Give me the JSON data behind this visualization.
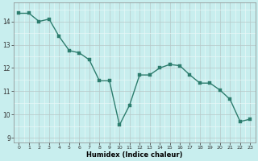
{
  "x": [
    0,
    1,
    2,
    3,
    4,
    5,
    6,
    7,
    8,
    9,
    10,
    11,
    12,
    13,
    14,
    15,
    16,
    17,
    18,
    19,
    20,
    21,
    22,
    23
  ],
  "y": [
    14.35,
    14.35,
    14.0,
    14.1,
    13.35,
    12.75,
    12.65,
    12.35,
    11.45,
    11.45,
    9.55,
    10.4,
    11.7,
    11.7,
    12.0,
    12.15,
    12.1,
    11.7,
    11.35,
    11.35,
    11.05,
    10.65,
    9.7,
    9.8
  ],
  "line_color": "#2d7d6e",
  "marker_color": "#2d7d6e",
  "bg_color": "#c8eeee",
  "xlabel": "Humidex (Indice chaleur)",
  "xlim": [
    -0.5,
    23.5
  ],
  "ylim": [
    8.8,
    14.8
  ],
  "yticks": [
    9,
    10,
    11,
    12,
    13,
    14
  ],
  "xticks": [
    0,
    1,
    2,
    3,
    4,
    5,
    6,
    7,
    8,
    9,
    10,
    11,
    12,
    13,
    14,
    15,
    16,
    17,
    18,
    19,
    20,
    21,
    22,
    23
  ]
}
